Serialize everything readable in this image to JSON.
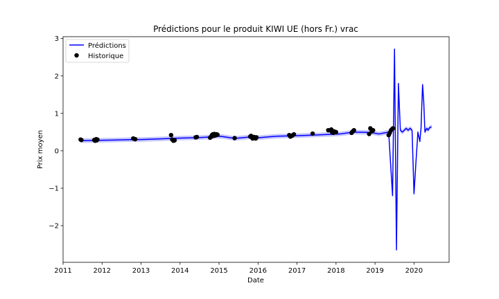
{
  "chart_data": {
    "type": "line",
    "title": "Prédictions pour le produit KIWI UE (hors Fr.) vrac",
    "xlabel": "Date",
    "ylabel": "Prix moyen",
    "xlim": [
      2011.0,
      2020.9
    ],
    "ylim": [
      -2.98,
      3.05
    ],
    "xticks": [
      2011,
      2012,
      2013,
      2014,
      2015,
      2016,
      2017,
      2018,
      2019,
      2020
    ],
    "yticks": [
      -2,
      -1,
      0,
      1,
      2,
      3
    ],
    "ytick_labels": [
      "−2",
      "−1",
      "0",
      "1",
      "2",
      "3"
    ],
    "legend": {
      "position": "top-left",
      "entries": [
        "Prédictions",
        "Historique"
      ]
    },
    "colors": {
      "prediction": "#0000ff",
      "band": "#b3b3ff",
      "historique": "#000000"
    },
    "series": [
      {
        "name": "Prédictions",
        "style": "line",
        "band_halfwidth": 0.06,
        "x": [
          2011.45,
          2011.9,
          2012.4,
          2012.8,
          2013.0,
          2013.5,
          2013.8,
          2014.0,
          2014.4,
          2014.8,
          2014.95,
          2015.1,
          2015.4,
          2015.8,
          2016.0,
          2016.5,
          2016.9,
          2017.4,
          2017.85,
          2018.1,
          2018.45,
          2018.9,
          2019.1,
          2019.35,
          2019.45,
          2019.5,
          2019.55,
          2019.6,
          2019.65,
          2019.7,
          2019.75,
          2019.8,
          2019.85,
          2019.9,
          2019.95,
          2020.0,
          2020.05,
          2020.1,
          2020.15,
          2020.18,
          2020.2,
          2020.22,
          2020.25,
          2020.28,
          2020.3,
          2020.33,
          2020.36,
          2020.4,
          2020.45
        ],
        "y": [
          0.27,
          0.28,
          0.29,
          0.3,
          0.3,
          0.32,
          0.33,
          0.34,
          0.35,
          0.37,
          0.39,
          0.38,
          0.33,
          0.37,
          0.35,
          0.39,
          0.4,
          0.42,
          0.44,
          0.45,
          0.5,
          0.49,
          0.45,
          0.5,
          -1.2,
          2.72,
          -2.65,
          1.8,
          0.55,
          0.5,
          0.55,
          0.6,
          0.55,
          0.6,
          0.55,
          -1.15,
          -0.3,
          0.5,
          0.25,
          0.6,
          1.2,
          1.77,
          1.3,
          0.5,
          0.55,
          0.6,
          0.55,
          0.62,
          0.64
        ]
      },
      {
        "name": "Historique",
        "style": "points",
        "x": [
          2011.45,
          2011.47,
          2011.8,
          2011.82,
          2011.83,
          2011.85,
          2011.86,
          2011.88,
          2012.8,
          2012.85,
          2013.77,
          2013.8,
          2013.83,
          2013.86,
          2014.4,
          2014.43,
          2014.77,
          2014.8,
          2014.82,
          2014.84,
          2014.86,
          2014.88,
          2014.9,
          2014.92,
          2014.94,
          2014.96,
          2015.4,
          2015.8,
          2015.82,
          2015.84,
          2015.86,
          2015.88,
          2015.9,
          2015.92,
          2015.94,
          2015.96,
          2016.8,
          2016.83,
          2016.86,
          2016.88,
          2016.92,
          2017.4,
          2017.8,
          2017.85,
          2017.88,
          2017.9,
          2017.93,
          2017.95,
          2018.0,
          2018.4,
          2018.43,
          2018.46,
          2018.85,
          2018.88,
          2018.92,
          2018.95,
          2019.35,
          2019.38,
          2019.41,
          2019.44,
          2019.46
        ],
        "y": [
          0.3,
          0.29,
          0.29,
          0.27,
          0.3,
          0.31,
          0.28,
          0.3,
          0.33,
          0.31,
          0.42,
          0.3,
          0.27,
          0.28,
          0.36,
          0.37,
          0.35,
          0.38,
          0.42,
          0.44,
          0.4,
          0.45,
          0.41,
          0.42,
          0.44,
          0.43,
          0.34,
          0.38,
          0.4,
          0.36,
          0.33,
          0.35,
          0.37,
          0.34,
          0.33,
          0.36,
          0.42,
          0.38,
          0.4,
          0.41,
          0.44,
          0.46,
          0.55,
          0.55,
          0.57,
          0.5,
          0.48,
          0.52,
          0.5,
          0.48,
          0.52,
          0.55,
          0.45,
          0.6,
          0.52,
          0.55,
          0.42,
          0.48,
          0.55,
          0.58,
          0.6
        ]
      }
    ]
  }
}
